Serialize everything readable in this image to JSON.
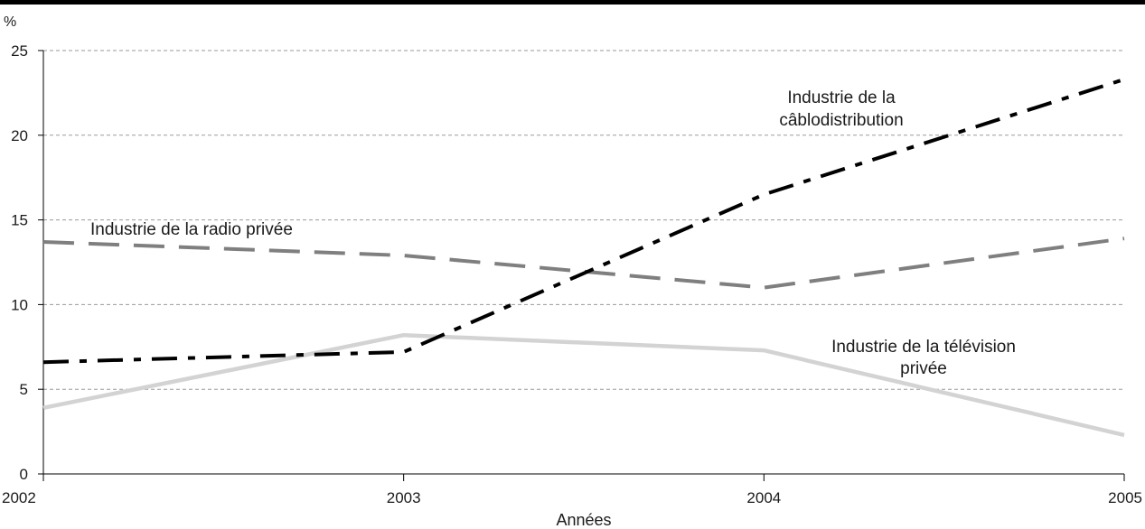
{
  "chart_data": {
    "type": "line",
    "title": "",
    "xlabel": "Années",
    "ylabel": "%",
    "x": [
      "2002",
      "2003",
      "2004",
      "2005"
    ],
    "ylim": [
      0,
      25
    ],
    "yticks": [
      "0",
      "5",
      "10",
      "15",
      "20",
      "25"
    ],
    "grid": true,
    "series": [
      {
        "name": "Industrie de la câblodistribution",
        "label_lines": [
          "Industrie de la",
          "câblodistribution"
        ],
        "values": [
          6.6,
          7.2,
          16.5,
          23.3
        ],
        "color": "#000000",
        "style": "dash-dot"
      },
      {
        "name": "Industrie de la radio privée",
        "label_lines": [
          "Industrie de la radio privée"
        ],
        "values": [
          13.7,
          12.9,
          11.0,
          13.9
        ],
        "color": "#7f7f7f",
        "style": "dashed"
      },
      {
        "name": "Industrie de la télévision privée",
        "label_lines": [
          "Industrie de la télévision",
          "privée"
        ],
        "values": [
          3.9,
          8.2,
          7.3,
          2.3
        ],
        "color": "#d3d3d3",
        "style": "solid"
      }
    ]
  }
}
